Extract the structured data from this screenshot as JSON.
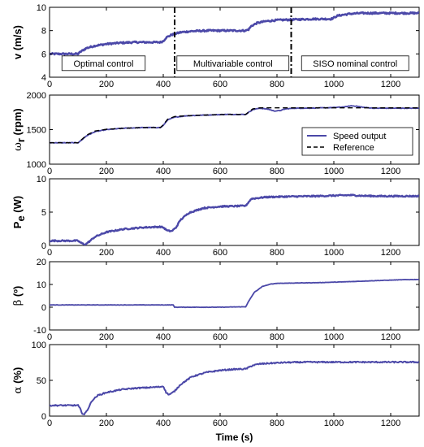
{
  "chart_data": [
    {
      "type": "line",
      "ylabel": "v (m/s)",
      "ylim": [
        4,
        10
      ],
      "yticks": [
        4,
        6,
        8,
        10
      ],
      "xlim": [
        0,
        1300
      ],
      "xticks": [
        0,
        200,
        400,
        600,
        800,
        1000,
        1200
      ],
      "series": [
        {
          "color": "#4b48a8",
          "width": 2.6,
          "dash": "",
          "noise": 0.07,
          "x": [
            0,
            100,
            110,
            130,
            160,
            200,
            250,
            300,
            350,
            390,
            400,
            410,
            430,
            460,
            500,
            560,
            620,
            690,
            700,
            710,
            730,
            760,
            800,
            860,
            930,
            990,
            1000,
            1010,
            1030,
            1060,
            1100,
            1160,
            1230,
            1300
          ],
          "y": [
            6.0,
            6.0,
            6.2,
            6.5,
            6.7,
            6.85,
            6.95,
            7.0,
            7.0,
            7.0,
            7.1,
            7.4,
            7.65,
            7.85,
            7.95,
            8.0,
            8.0,
            8.0,
            8.1,
            8.4,
            8.65,
            8.8,
            8.9,
            8.95,
            9.0,
            9.0,
            9.1,
            9.25,
            9.35,
            9.45,
            9.5,
            9.5,
            9.5,
            9.5
          ]
        }
      ],
      "phase_lines": [
        440,
        850
      ],
      "annotations": [
        {
          "text": "Optimal control",
          "x": 190,
          "y": 5.2
        },
        {
          "text": "Multivariable control",
          "x": 645,
          "y": 5.2
        },
        {
          "text": "SISO nominal control",
          "x": 1075,
          "y": 5.2
        }
      ]
    },
    {
      "type": "line",
      "ylabel_symbol": "ω",
      "ylabel_sub": "r",
      "ylabel_unit": " (rpm)",
      "ylim": [
        1000,
        2000
      ],
      "yticks": [
        1000,
        1500,
        2000
      ],
      "xlim": [
        0,
        1300
      ],
      "xticks": [
        0,
        200,
        400,
        600,
        800,
        1000,
        1200
      ],
      "series": [
        {
          "name": "Speed output",
          "color": "#4b48a8",
          "width": 1.8,
          "dash": "",
          "noise": 4,
          "x": [
            0,
            100,
            110,
            130,
            160,
            200,
            260,
            330,
            390,
            400,
            415,
            440,
            480,
            540,
            620,
            690,
            700,
            715,
            740,
            770,
            790,
            810,
            830,
            860,
            900,
            960,
            1000,
            1040,
            1060,
            1080,
            1100,
            1140,
            1200,
            1300
          ],
          "y": [
            1310,
            1310,
            1340,
            1410,
            1470,
            1500,
            1520,
            1530,
            1530,
            1560,
            1640,
            1680,
            1700,
            1710,
            1720,
            1720,
            1750,
            1790,
            1810,
            1795,
            1770,
            1775,
            1800,
            1810,
            1810,
            1815,
            1820,
            1830,
            1845,
            1840,
            1825,
            1810,
            1810,
            1810
          ]
        },
        {
          "name": "Reference",
          "color": "#000000",
          "width": 1.4,
          "dash": "6,4",
          "noise": 0,
          "x": [
            0,
            100,
            110,
            130,
            160,
            200,
            260,
            330,
            390,
            400,
            415,
            440,
            480,
            540,
            620,
            690,
            700,
            715,
            740,
            770,
            800,
            1300
          ],
          "y": [
            1310,
            1310,
            1345,
            1420,
            1480,
            1505,
            1520,
            1530,
            1530,
            1570,
            1650,
            1690,
            1700,
            1710,
            1720,
            1720,
            1755,
            1800,
            1815,
            1815,
            1815,
            1815
          ]
        }
      ],
      "legend": "center-right"
    },
    {
      "type": "line",
      "ylabel": "P",
      "ylabel_sub": "e",
      "ylabel_unit": " (W)",
      "ylim": [
        0,
        10
      ],
      "yticks": [
        0,
        5,
        10
      ],
      "xlim": [
        0,
        1300
      ],
      "xticks": [
        0,
        200,
        400,
        600,
        800,
        1000,
        1200
      ],
      "series": [
        {
          "color": "#4b48a8",
          "width": 2.4,
          "dash": "",
          "noise": 0.1,
          "x": [
            0,
            100,
            110,
            125,
            140,
            160,
            200,
            260,
            330,
            390,
            400,
            415,
            430,
            445,
            460,
            490,
            540,
            600,
            660,
            690,
            700,
            710,
            730,
            760,
            800,
            860,
            940,
            1020,
            1060,
            1100,
            1160,
            1220,
            1300
          ],
          "y": [
            0.7,
            0.7,
            0.4,
            0.1,
            0.6,
            1.3,
            2.0,
            2.45,
            2.7,
            2.8,
            2.7,
            2.2,
            2.15,
            2.7,
            3.8,
            4.9,
            5.6,
            5.85,
            5.9,
            5.95,
            6.5,
            7.0,
            7.1,
            7.25,
            7.3,
            7.35,
            7.4,
            7.5,
            7.55,
            7.45,
            7.4,
            7.4,
            7.4
          ]
        }
      ]
    },
    {
      "type": "line",
      "ylabel_symbol": "β",
      "ylabel_unit": " (º)",
      "ylim": [
        -10,
        20
      ],
      "yticks": [
        -10,
        0,
        10,
        20
      ],
      "xlim": [
        0,
        1300
      ],
      "xticks": [
        0,
        200,
        400,
        600,
        800,
        1000,
        1200
      ],
      "series": [
        {
          "color": "#4b48a8",
          "width": 1.8,
          "dash": "",
          "noise": 0.08,
          "x": [
            0,
            400,
            420,
            435,
            440,
            450,
            600,
            690,
            700,
            720,
            750,
            780,
            800,
            850,
            950,
            1050,
            1150,
            1250,
            1300
          ],
          "y": [
            1.0,
            1.0,
            1.0,
            1.0,
            0.0,
            0.0,
            0.0,
            0.2,
            2.5,
            6.5,
            9.2,
            10.2,
            10.5,
            10.6,
            10.8,
            11.2,
            11.7,
            12.1,
            12.2
          ]
        }
      ]
    },
    {
      "type": "line",
      "ylabel_symbol": "α",
      "ylabel_unit": " (%)",
      "ylim": [
        0,
        100
      ],
      "yticks": [
        0,
        50,
        100
      ],
      "xlim": [
        0,
        1300
      ],
      "xticks": [
        0,
        200,
        400,
        600,
        800,
        1000,
        1200
      ],
      "series": [
        {
          "color": "#4b48a8",
          "width": 2.0,
          "dash": "",
          "noise": 0.9,
          "x": [
            0,
            100,
            108,
            115,
            122,
            135,
            150,
            170,
            200,
            250,
            300,
            350,
            390,
            400,
            410,
            420,
            430,
            440,
            460,
            500,
            550,
            600,
            650,
            690,
            700,
            715,
            740,
            780,
            830,
            900,
            1000,
            1100,
            1200,
            1300
          ],
          "y": [
            15,
            15,
            10,
            4,
            2,
            10,
            22,
            29,
            33,
            37,
            39,
            40,
            41,
            42,
            33,
            30,
            32,
            35,
            44,
            55,
            61,
            64,
            65.5,
            66,
            68,
            71,
            73,
            74,
            75,
            75.5,
            75.5,
            75.5,
            75.5,
            75.5
          ]
        }
      ]
    }
  ],
  "xlabel": "Time (s)"
}
